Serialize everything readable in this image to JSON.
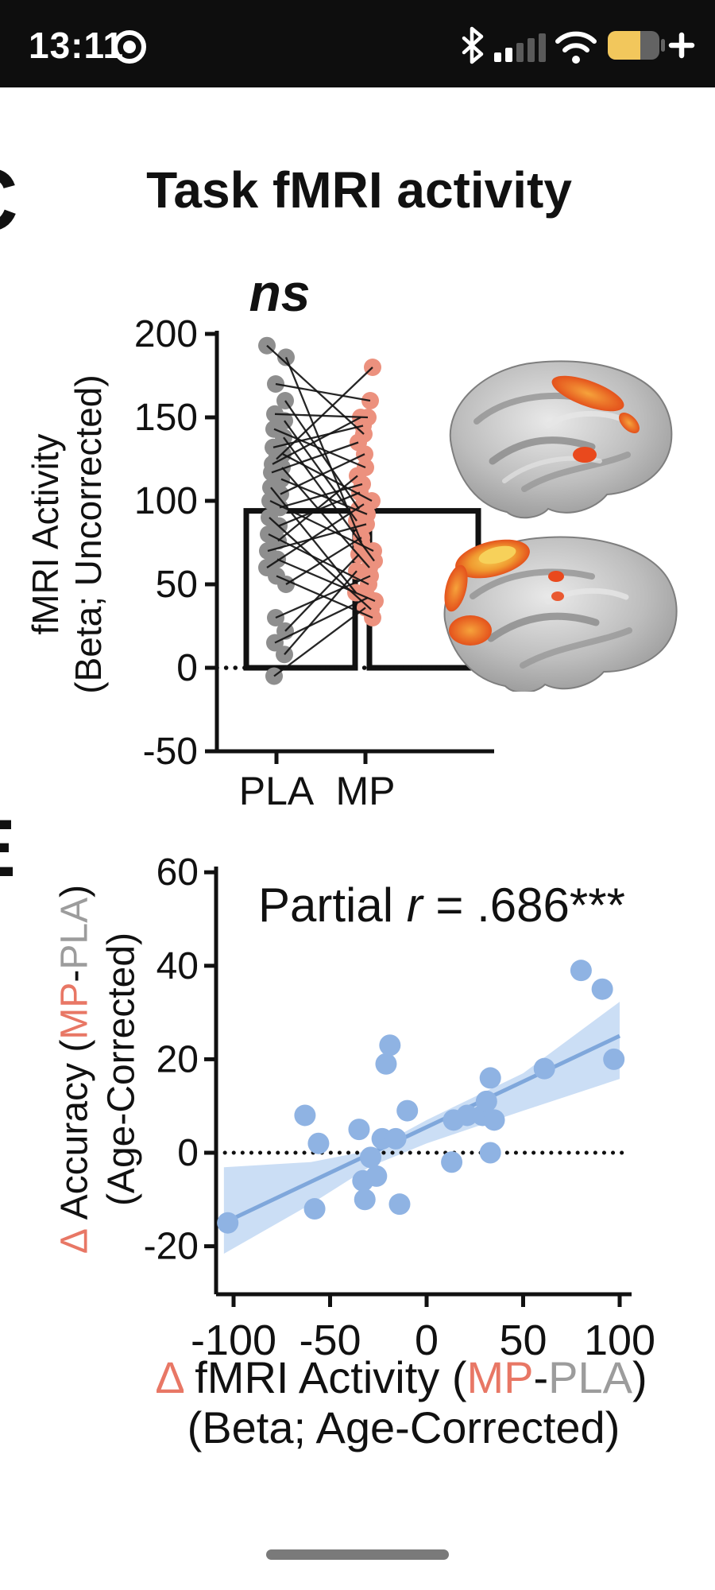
{
  "status_bar": {
    "time": "13:11",
    "icons": {
      "recording": "screen-record-indicator",
      "bluetooth": "bluetooth",
      "signal": "cellular-signal-2-of-5",
      "wifi": "wifi-full",
      "battery": "battery-saver-62",
      "battery_plus": "+"
    },
    "battery_level": 0.62
  },
  "chart_data": [
    {
      "type": "bar",
      "subtype": "paired-column-scatter",
      "panel_letter": "C",
      "title": "Task fMRI activity",
      "significance_label": "ns",
      "categories": [
        "PLA",
        "MP"
      ],
      "bar_means": [
        94,
        94
      ],
      "pairs": [
        [
          193,
          140
        ],
        [
          125,
          180
        ],
        [
          186,
          75
        ],
        [
          170,
          160
        ],
        [
          160,
          95
        ],
        [
          152,
          150
        ],
        [
          148,
          88
        ],
        [
          143,
          120
        ],
        [
          138,
          64
        ],
        [
          132,
          145
        ],
        [
          128,
          100
        ],
        [
          122,
          150
        ],
        [
          120,
          60
        ],
        [
          117,
          135
        ],
        [
          113,
          92
        ],
        [
          108,
          45
        ],
        [
          104,
          128
        ],
        [
          100,
          70
        ],
        [
          96,
          110
        ],
        [
          90,
          35
        ],
        [
          85,
          105
        ],
        [
          80,
          50
        ],
        [
          76,
          115
        ],
        [
          70,
          86
        ],
        [
          65,
          40
        ],
        [
          60,
          98
        ],
        [
          55,
          30
        ],
        [
          50,
          78
        ],
        [
          30,
          55
        ],
        [
          22,
          68
        ],
        [
          15,
          42
        ],
        [
          8,
          58
        ],
        [
          -5,
          36
        ]
      ],
      "ylabel_line1": "fMRI Activity",
      "ylabel_line2": "(Beta; Uncorrected)",
      "yticks": [
        200,
        150,
        100,
        50,
        0,
        -50
      ],
      "ylim": [
        -50,
        210
      ],
      "zero_line": "dotted",
      "legend": "none"
    },
    {
      "type": "scatter",
      "panel_letter": "E",
      "annotation_parts": {
        "prefix": "Partial ",
        "stat_symbol": "r",
        "value": " = .686***"
      },
      "points": [
        [
          -103,
          -15
        ],
        [
          -63,
          8
        ],
        [
          -58,
          -12
        ],
        [
          -56,
          2
        ],
        [
          -35,
          5
        ],
        [
          -33,
          -6
        ],
        [
          -32,
          -10
        ],
        [
          -29,
          -1
        ],
        [
          -26,
          -5
        ],
        [
          -23,
          3
        ],
        [
          -21,
          19
        ],
        [
          -19,
          23
        ],
        [
          -16,
          3
        ],
        [
          -14,
          -11
        ],
        [
          -10,
          9
        ],
        [
          13,
          -2
        ],
        [
          14,
          7
        ],
        [
          21,
          8
        ],
        [
          29,
          8
        ],
        [
          31,
          11
        ],
        [
          33,
          16
        ],
        [
          33,
          0
        ],
        [
          35,
          7
        ],
        [
          61,
          18
        ],
        [
          80,
          39
        ],
        [
          91,
          35
        ],
        [
          97,
          20
        ]
      ],
      "regression_line": {
        "x1": -105,
        "y1": -15,
        "x2": 100,
        "y2": 25
      },
      "ci_band": {
        "lower": [
          [
            -105,
            -21.6
          ],
          [
            -60,
            -11
          ],
          [
            -29,
            -2.9
          ],
          [
            0,
            2
          ],
          [
            50,
            9
          ],
          [
            100,
            15.8
          ]
        ],
        "upper": [
          [
            -105,
            -3.1
          ],
          [
            -60,
            -2
          ],
          [
            -29,
            0.5
          ],
          [
            0,
            7
          ],
          [
            50,
            17
          ],
          [
            100,
            32.3
          ]
        ]
      },
      "xticks": [
        -100,
        -50,
        0,
        50,
        100
      ],
      "yticks": [
        60,
        40,
        20,
        0,
        -20
      ],
      "xlim": [
        -110,
        107
      ],
      "ylim": [
        -38,
        62
      ],
      "zero_line": "dotted",
      "xlabel_line1_parts": [
        {
          "t": "Δ",
          "c": "salmon"
        },
        {
          "t": " fMRI Activity (",
          "c": "black"
        },
        {
          "t": "MP",
          "c": "salmon"
        },
        {
          "t": "-",
          "c": "black"
        },
        {
          "t": "PLA",
          "c": "gray"
        },
        {
          "t": ")",
          "c": "black"
        }
      ],
      "xlabel_line2": "(Beta; Age-Corrected)",
      "ylabel_line1_parts": [
        {
          "t": "Δ",
          "c": "salmon"
        },
        {
          "t": " Accuracy (",
          "c": "black"
        },
        {
          "t": "MP",
          "c": "salmon"
        },
        {
          "t": "-",
          "c": "black"
        },
        {
          "t": "PLA",
          "c": "gray"
        },
        {
          "t": ")",
          "c": "black"
        }
      ],
      "ylabel_line2": "(Age-Corrected)",
      "legend": "none"
    }
  ],
  "brains": [
    {
      "name": "brain-lateral-top",
      "activation": "posterior-parietal"
    },
    {
      "name": "brain-lateral-bottom",
      "activation": "frontal"
    }
  ],
  "home_indicator": {
    "present": true
  },
  "colors": {
    "ink": "#111111",
    "salmon": "#E87765",
    "gray_label": "#9C9C9C",
    "dot_gray": "#8E8E8E",
    "dot_salmon": "#EC917E",
    "dot_blue": "#8FB3E3",
    "ci_band": "#CBDEF5",
    "regression_line": "#7FA7DB",
    "battery_yellow": "#F2C75C",
    "status_bg": "#0E0E0E"
  }
}
